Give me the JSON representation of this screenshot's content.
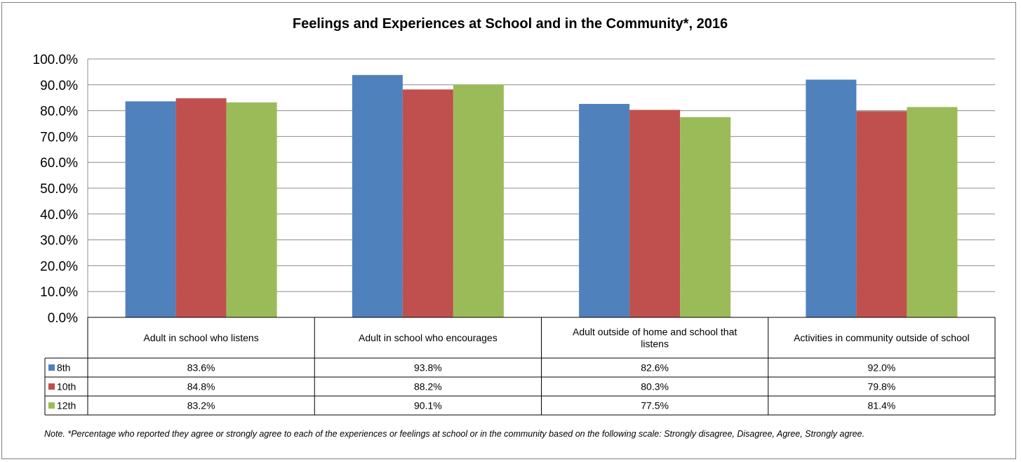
{
  "chart_data": {
    "type": "bar",
    "title": "Feelings and Experiences at School and in the Community*, 2016",
    "categories": [
      "Adult in school who listens",
      "Adult in school who encourages",
      "Adult outside of home and school that listens",
      "Activities in community outside of school"
    ],
    "series": [
      {
        "name": "8th",
        "color": "#4f81bd",
        "values": [
          83.6,
          93.8,
          82.6,
          92.0
        ],
        "labels": [
          "83.6%",
          "93.8%",
          "82.6%",
          "92.0%"
        ]
      },
      {
        "name": "10th",
        "color": "#c0504d",
        "values": [
          84.8,
          88.2,
          80.3,
          79.8
        ],
        "labels": [
          "84.8%",
          "88.2%",
          "80.3%",
          "79.8%"
        ]
      },
      {
        "name": "12th",
        "color": "#9bbb59",
        "values": [
          83.2,
          90.1,
          77.5,
          81.4
        ],
        "labels": [
          "83.2%",
          "90.1%",
          "77.5%",
          "81.4%"
        ]
      }
    ],
    "ylim": [
      0,
      100
    ],
    "yticks": [
      "0.0%",
      "10.0%",
      "20.0%",
      "30.0%",
      "40.0%",
      "50.0%",
      "60.0%",
      "70.0%",
      "80.0%",
      "90.0%",
      "100.0%"
    ],
    "grid": true,
    "legend": "data-table"
  },
  "note": "Note. *Percentage who reported they agree or strongly agree to each of the experiences or feelings at school or in the community based on the following scale: Strongly disagree, Disagree, Agree, Strongly agree."
}
